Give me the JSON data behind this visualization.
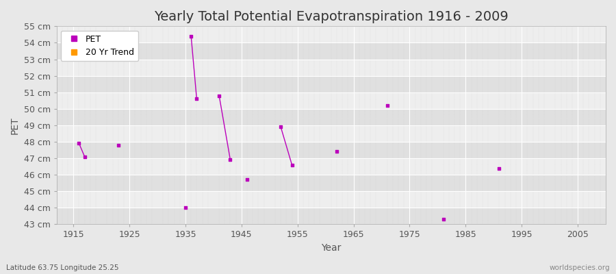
{
  "title": "Yearly Total Potential Evapotranspiration 1916 - 2009",
  "xlabel": "Year",
  "ylabel": "PET",
  "footnote_left": "Latitude 63.75 Longitude 25.25",
  "footnote_right": "worldspecies.org",
  "ylim": [
    43,
    55
  ],
  "xlim": [
    1912,
    2010
  ],
  "yticks": [
    43,
    44,
    45,
    46,
    47,
    48,
    49,
    50,
    51,
    52,
    53,
    54,
    55
  ],
  "xticks": [
    1915,
    1925,
    1935,
    1945,
    1955,
    1965,
    1975,
    1985,
    1995,
    2005
  ],
  "pet_data": [
    [
      1916,
      47.9
    ],
    [
      1917,
      47.1
    ],
    [
      1923,
      47.8
    ],
    [
      1935,
      44.0
    ],
    [
      1936,
      54.4
    ],
    [
      1937,
      50.6
    ],
    [
      1941,
      50.8
    ],
    [
      1943,
      46.9
    ],
    [
      1946,
      45.7
    ],
    [
      1952,
      48.9
    ],
    [
      1954,
      46.6
    ],
    [
      1962,
      47.4
    ],
    [
      1971,
      50.2
    ],
    [
      1981,
      43.3
    ],
    [
      1991,
      46.4
    ]
  ],
  "pet_line_segments": [
    [
      [
        1916,
        47.9
      ],
      [
        1917,
        47.1
      ]
    ],
    [
      [
        1936,
        54.4
      ],
      [
        1937,
        50.6
      ]
    ],
    [
      [
        1941,
        50.8
      ],
      [
        1943,
        46.9
      ]
    ],
    [
      [
        1952,
        48.9
      ],
      [
        1954,
        46.6
      ]
    ]
  ],
  "pet_color": "#bb00bb",
  "trend_color": "#ff9900",
  "bg_color": "#e8e8e8",
  "plot_bg_color": "#e8e8e8",
  "stripe_light": "#eeeeee",
  "stripe_dark": "#e0e0e0",
  "grid_color": "#ffffff",
  "vgrid_color": "#cccccc",
  "title_fontsize": 14,
  "axis_label_fontsize": 10,
  "tick_fontsize": 9,
  "legend_fontsize": 9
}
